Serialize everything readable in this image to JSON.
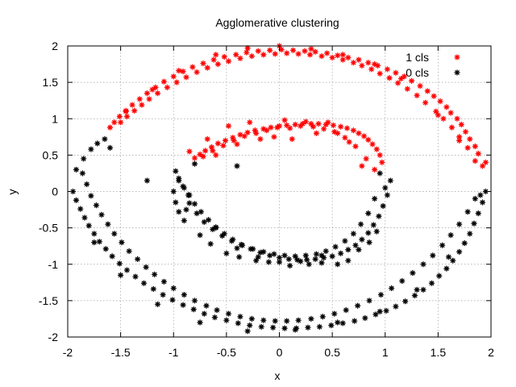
{
  "chart_data": {
    "type": "scatter",
    "title": "Agglomerative clustering",
    "xlabel": "x",
    "ylabel": "y",
    "xlim": [
      -2,
      2
    ],
    "ylim": [
      -2,
      2
    ],
    "x_ticks": [
      "-2",
      "-1.5",
      "-1",
      "-0.5",
      "0",
      "0.5",
      "1",
      "1.5",
      "2"
    ],
    "y_ticks": [
      "-2",
      "-1.5",
      "-1",
      "-0.5",
      "0",
      "0.5",
      "1",
      "1.5",
      "2"
    ],
    "grid": true,
    "legend_position": "top-right",
    "series": [
      {
        "name": "1 cls",
        "color": "#ff0000",
        "x": [
          1.92,
          1.88,
          1.85,
          1.8,
          1.76,
          1.72,
          1.68,
          1.62,
          1.58,
          1.52,
          1.46,
          1.4,
          1.33,
          1.25,
          1.18,
          1.1,
          1.02,
          0.93,
          0.84,
          0.75,
          0.65,
          0.55,
          0.45,
          0.34,
          0.24,
          0.13,
          0.02,
          -0.09,
          -0.2,
          -0.31,
          -0.41,
          -0.52,
          -0.62,
          -0.72,
          -0.82,
          -0.91,
          -1.0,
          -1.09,
          -1.17,
          -1.25,
          -1.32,
          -1.39,
          -1.45,
          -1.51,
          -1.56,
          -1.6,
          1.85,
          1.78,
          1.7,
          1.63,
          1.55,
          1.48,
          1.38,
          1.3,
          1.21,
          1.12,
          1.04,
          0.95,
          0.87,
          0.78,
          0.7,
          0.6,
          0.5,
          0.4,
          0.29,
          0.18,
          0.07,
          -0.04,
          -0.15,
          -0.26,
          -0.37,
          -0.48,
          -0.58,
          -0.68,
          -0.78,
          -0.88,
          -0.97,
          -1.06,
          -1.15,
          -1.23,
          -1.3,
          -1.37,
          -1.44,
          -1.5,
          1.95,
          1.7,
          1.5,
          1.15,
          0.9,
          0.6,
          0.3,
          0.0,
          -0.3,
          -0.6,
          -0.95,
          -1.2,
          -1.45,
          0.97,
          0.95,
          0.92,
          0.88,
          0.84,
          0.8,
          0.75,
          0.7,
          0.64,
          0.58,
          0.51,
          0.44,
          0.37,
          0.3,
          0.22,
          0.15,
          0.07,
          0.0,
          -0.08,
          -0.15,
          -0.23,
          -0.3,
          -0.37,
          -0.44,
          -0.51,
          -0.58,
          -0.64,
          -0.7,
          -0.75,
          -0.8,
          0.9,
          0.82,
          0.72,
          0.62,
          0.52,
          0.42,
          0.32,
          0.2,
          0.1,
          -0.02,
          -0.12,
          -0.22,
          -0.33,
          -0.43,
          -0.53,
          -0.63,
          -0.72,
          0.78,
          0.66,
          0.55,
          0.46,
          0.35,
          0.25,
          0.12,
          0.05,
          -0.05,
          -0.18,
          -0.28,
          -0.4,
          -0.48,
          -0.6,
          -0.68,
          -0.85
        ],
        "y": [
          0.35,
          0.52,
          0.62,
          0.72,
          0.82,
          0.92,
          1.0,
          1.08,
          1.16,
          1.24,
          1.31,
          1.38,
          1.45,
          1.52,
          1.58,
          1.63,
          1.68,
          1.73,
          1.77,
          1.81,
          1.84,
          1.87,
          1.9,
          1.92,
          1.93,
          1.94,
          1.95,
          1.94,
          1.93,
          1.91,
          1.88,
          1.85,
          1.81,
          1.76,
          1.71,
          1.65,
          1.58,
          1.51,
          1.43,
          1.35,
          1.27,
          1.19,
          1.11,
          1.03,
          0.95,
          0.88,
          0.42,
          0.6,
          0.75,
          0.88,
          1.0,
          1.1,
          1.22,
          1.32,
          1.41,
          1.49,
          1.56,
          1.62,
          1.68,
          1.73,
          1.77,
          1.81,
          1.84,
          1.86,
          1.88,
          1.89,
          1.9,
          1.89,
          1.88,
          1.86,
          1.83,
          1.79,
          1.75,
          1.7,
          1.64,
          1.57,
          1.5,
          1.43,
          1.35,
          1.27,
          1.19,
          1.11,
          1.03,
          0.95,
          0.4,
          0.7,
          1.05,
          1.55,
          1.75,
          1.88,
          1.96,
          2.0,
          1.97,
          1.88,
          1.66,
          1.4,
          1.1,
          0.4,
          0.5,
          0.58,
          0.65,
          0.71,
          0.76,
          0.8,
          0.84,
          0.87,
          0.89,
          0.91,
          0.92,
          0.93,
          0.93,
          0.93,
          0.92,
          0.91,
          0.9,
          0.88,
          0.86,
          0.84,
          0.81,
          0.78,
          0.74,
          0.7,
          0.66,
          0.61,
          0.56,
          0.51,
          0.46,
          0.3,
          0.45,
          0.62,
          0.74,
          0.82,
          0.86,
          0.89,
          0.9,
          0.87,
          0.88,
          0.84,
          0.8,
          0.76,
          0.7,
          0.63,
          0.56,
          0.48,
          0.35,
          0.68,
          0.8,
          0.95,
          0.8,
          0.96,
          0.72,
          0.98,
          0.75,
          0.72,
          0.95,
          0.65,
          0.9,
          0.5,
          0.72,
          0.55
        ]
      },
      {
        "name": "0 cls",
        "color": "#000000",
        "x": [
          1.95,
          1.92,
          1.88,
          1.84,
          1.8,
          1.75,
          1.7,
          1.64,
          1.58,
          1.51,
          1.44,
          1.36,
          1.28,
          1.19,
          1.1,
          1.01,
          0.91,
          0.81,
          0.71,
          0.6,
          0.49,
          0.38,
          0.27,
          0.16,
          0.05,
          -0.06,
          -0.17,
          -0.28,
          -0.39,
          -0.5,
          -0.61,
          -0.71,
          -0.81,
          -0.91,
          -1.01,
          -1.1,
          -1.19,
          -1.28,
          -1.36,
          -1.44,
          -1.51,
          -1.58,
          -1.64,
          -1.7,
          -1.75,
          -1.8,
          -1.84,
          -1.88,
          -1.92,
          -1.95,
          -1.92,
          -1.85,
          -1.78,
          -1.72,
          -1.65,
          1.85,
          1.78,
          1.7,
          1.62,
          1.54,
          1.45,
          1.36,
          1.26,
          1.16,
          1.06,
          0.96,
          0.85,
          0.74,
          0.63,
          0.52,
          0.41,
          0.3,
          0.18,
          0.07,
          -0.04,
          -0.15,
          -0.26,
          -0.37,
          -0.48,
          -0.59,
          -0.69,
          -0.8,
          -0.9,
          -1.0,
          -1.09,
          -1.18,
          -1.26,
          -1.34,
          -1.42,
          -1.49,
          -1.56,
          -1.62,
          -1.68,
          -1.73,
          -1.78,
          -1.82,
          -1.86,
          1.9,
          1.6,
          1.3,
          0.95,
          0.55,
          0.15,
          -0.3,
          -0.75,
          -1.15,
          -1.5,
          -1.75,
          -1.6,
          -1.25,
          -0.85,
          -0.4,
          1.05,
          1.02,
          0.98,
          0.94,
          0.89,
          0.84,
          0.78,
          0.72,
          0.65,
          0.58,
          0.5,
          0.42,
          0.34,
          0.26,
          0.17,
          0.09,
          0.0,
          -0.09,
          -0.18,
          -0.27,
          -0.36,
          -0.44,
          -0.52,
          -0.6,
          -0.67,
          -0.74,
          -0.8,
          -0.86,
          -0.91,
          -0.95,
          -0.98,
          -1.0,
          -0.98,
          -0.95,
          -0.9,
          0.95,
          0.9,
          0.84,
          0.77,
          0.7,
          0.62,
          0.53,
          0.44,
          0.35,
          0.25,
          0.15,
          0.05,
          -0.05,
          -0.15,
          -0.25,
          -0.35,
          -0.45,
          -0.54,
          -0.63,
          -0.71,
          -0.78,
          -0.85,
          -0.9,
          1.0,
          0.92,
          0.85,
          0.75,
          0.65,
          0.55,
          0.4,
          0.28,
          0.1,
          -0.1,
          -0.22,
          -0.38,
          -0.5,
          -0.65,
          -0.75,
          -0.88,
          -0.95,
          -0.8,
          -0.6,
          -0.4,
          -0.2,
          0.0,
          0.2,
          0.4
        ],
        "y": [
          0.0,
          -0.15,
          -0.3,
          -0.44,
          -0.58,
          -0.71,
          -0.83,
          -0.95,
          -1.06,
          -1.16,
          -1.26,
          -1.35,
          -1.43,
          -1.51,
          -1.58,
          -1.64,
          -1.69,
          -1.74,
          -1.78,
          -1.81,
          -1.84,
          -1.86,
          -1.87,
          -1.88,
          -1.88,
          -1.87,
          -1.86,
          -1.84,
          -1.81,
          -1.77,
          -1.73,
          -1.68,
          -1.62,
          -1.56,
          -1.49,
          -1.42,
          -1.34,
          -1.26,
          -1.17,
          -1.08,
          -0.99,
          -0.89,
          -0.79,
          -0.69,
          -0.58,
          -0.47,
          -0.36,
          -0.24,
          -0.12,
          0.0,
          0.3,
          0.45,
          0.58,
          0.66,
          0.72,
          -0.1,
          -0.28,
          -0.45,
          -0.6,
          -0.74,
          -0.88,
          -1.0,
          -1.12,
          -1.23,
          -1.33,
          -1.42,
          -1.5,
          -1.57,
          -1.63,
          -1.68,
          -1.72,
          -1.75,
          -1.77,
          -1.78,
          -1.78,
          -1.77,
          -1.75,
          -1.72,
          -1.68,
          -1.63,
          -1.57,
          -1.5,
          -1.42,
          -1.33,
          -1.24,
          -1.14,
          -1.04,
          -0.93,
          -0.82,
          -0.7,
          -0.58,
          -0.45,
          -0.32,
          -0.19,
          -0.06,
          0.1,
          0.25,
          -0.05,
          -0.9,
          -1.35,
          -1.65,
          -1.8,
          -1.9,
          -1.92,
          -1.8,
          -1.55,
          -1.15,
          -0.7,
          0.6,
          0.15,
          -0.05,
          0.35,
          0.15,
          -0.05,
          -0.2,
          -0.34,
          -0.46,
          -0.57,
          -0.66,
          -0.74,
          -0.8,
          -0.85,
          -0.89,
          -0.91,
          -0.93,
          -0.94,
          -0.94,
          -0.93,
          -0.91,
          -0.88,
          -0.84,
          -0.79,
          -0.73,
          -0.66,
          -0.58,
          -0.49,
          -0.39,
          -0.28,
          -0.17,
          -0.05,
          0.07,
          0.18,
          0.28,
          0.0,
          -0.15,
          -0.28,
          -0.4,
          0.25,
          -0.1,
          -0.3,
          -0.45,
          -0.58,
          -0.68,
          -0.76,
          -0.82,
          -0.86,
          -0.88,
          -0.89,
          -0.88,
          -0.86,
          -0.83,
          -0.79,
          -0.74,
          -0.68,
          -0.61,
          -0.52,
          -0.42,
          -0.3,
          -0.16,
          0.05,
          0.05,
          -0.55,
          -0.7,
          -0.8,
          -0.95,
          -1.0,
          -0.98,
          -1.0,
          -1.02,
          -0.97,
          -0.95,
          -0.9,
          -0.85,
          -0.72,
          -0.6,
          -0.25,
          0.15,
          0.38,
          -0.5,
          -0.78,
          -0.9,
          -0.97,
          -0.96,
          -0.88
        ]
      }
    ]
  }
}
